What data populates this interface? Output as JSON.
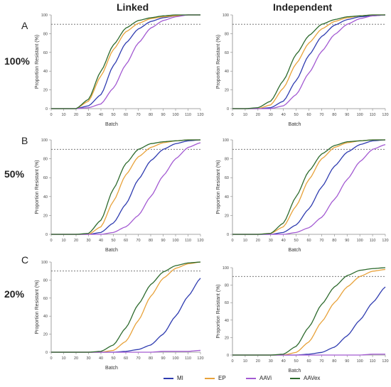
{
  "headers": {
    "linked": "Linked",
    "independent": "Independent"
  },
  "rows": [
    {
      "letter": "A",
      "percent": "100%"
    },
    {
      "letter": "B",
      "percent": "50%"
    },
    {
      "letter": "C",
      "percent": "20%"
    }
  ],
  "axes": {
    "ylabel": "Proportion Resistant (%)",
    "xlabel": "Batch",
    "xticks": [
      "0",
      "10",
      "20",
      "30",
      "40",
      "50",
      "60",
      "70",
      "80",
      "90",
      "100",
      "110",
      "120"
    ],
    "yticks": [
      "0",
      "20",
      "40",
      "60",
      "80",
      "100"
    ],
    "xlim": [
      0,
      120
    ],
    "ylim": [
      0,
      100
    ],
    "threshold": 90
  },
  "series_styles": [
    {
      "name": "MI",
      "color": "#2e3bb0"
    },
    {
      "name": "EP",
      "color": "#e8a23a"
    },
    {
      "name": "AAVi",
      "color": "#a35ad2"
    },
    {
      "name": "AAVex",
      "color": "#2d6a2d"
    }
  ],
  "legend": [
    {
      "label": "MI",
      "color": "#2e3bb0"
    },
    {
      "label": "EP",
      "color": "#e8a23a"
    },
    {
      "label": "AAVi",
      "color": "#a35ad2"
    },
    {
      "label": "AAVex",
      "color": "#2d6a2d"
    }
  ],
  "chart_data": [
    {
      "type": "line",
      "panel": "A-Linked",
      "xlim": [
        0,
        120
      ],
      "ylim": [
        0,
        100
      ],
      "xlabel": "Batch",
      "ylabel": "Proportion Resistant (%)",
      "reference_line_y": 90,
      "x": [
        0,
        10,
        20,
        30,
        40,
        50,
        60,
        70,
        80,
        90,
        100,
        110,
        120
      ],
      "series": [
        {
          "name": "MI",
          "values": [
            0,
            0,
            0,
            3,
            15,
            46,
            70,
            85,
            93,
            97,
            99,
            100,
            100
          ]
        },
        {
          "name": "EP",
          "values": [
            0,
            0,
            0,
            8,
            35,
            63,
            82,
            91,
            96,
            98,
            99,
            100,
            100
          ]
        },
        {
          "name": "AAVi",
          "values": [
            0,
            0,
            0,
            1,
            5,
            22,
            47,
            70,
            86,
            94,
            98,
            100,
            100
          ]
        },
        {
          "name": "AAVex",
          "values": [
            0,
            0,
            0,
            10,
            40,
            68,
            86,
            94,
            97,
            99,
            100,
            100,
            100
          ]
        }
      ]
    },
    {
      "type": "line",
      "panel": "A-Independent",
      "xlim": [
        0,
        120
      ],
      "ylim": [
        0,
        100
      ],
      "xlabel": "Batch",
      "ylabel": "Proportion Resistant (%)",
      "reference_line_y": 90,
      "x": [
        0,
        10,
        20,
        30,
        40,
        50,
        60,
        70,
        80,
        90,
        100,
        110,
        120
      ],
      "series": [
        {
          "name": "MI",
          "values": [
            0,
            0,
            0,
            1,
            8,
            30,
            57,
            77,
            89,
            95,
            98,
            99,
            100
          ]
        },
        {
          "name": "EP",
          "values": [
            0,
            0,
            0,
            4,
            22,
            48,
            70,
            85,
            93,
            97,
            99,
            100,
            100
          ]
        },
        {
          "name": "AAVi",
          "values": [
            0,
            0,
            0,
            0,
            3,
            15,
            38,
            61,
            79,
            90,
            96,
            99,
            100
          ]
        },
        {
          "name": "AAVex",
          "values": [
            0,
            0,
            1,
            8,
            30,
            58,
            78,
            90,
            95,
            98,
            99,
            100,
            100
          ]
        }
      ]
    },
    {
      "type": "line",
      "panel": "B-Linked",
      "xlim": [
        0,
        120
      ],
      "ylim": [
        0,
        100
      ],
      "xlabel": "Batch",
      "ylabel": "Proportion Resistant (%)",
      "reference_line_y": 90,
      "x": [
        0,
        10,
        20,
        30,
        40,
        50,
        60,
        70,
        80,
        90,
        100,
        110,
        120
      ],
      "series": [
        {
          "name": "MI",
          "values": [
            0,
            0,
            0,
            0,
            2,
            12,
            32,
            58,
            78,
            90,
            96,
            99,
            100
          ]
        },
        {
          "name": "EP",
          "values": [
            0,
            0,
            0,
            0,
            8,
            35,
            63,
            82,
            92,
            97,
            99,
            100,
            100
          ]
        },
        {
          "name": "AAVi",
          "values": [
            0,
            0,
            0,
            0,
            0,
            2,
            8,
            20,
            40,
            62,
            80,
            92,
            97
          ]
        },
        {
          "name": "AAVex",
          "values": [
            0,
            0,
            0,
            1,
            15,
            48,
            75,
            90,
            96,
            98,
            99,
            100,
            100
          ]
        }
      ]
    },
    {
      "type": "line",
      "panel": "B-Independent",
      "xlim": [
        0,
        120
      ],
      "ylim": [
        0,
        100
      ],
      "xlabel": "Batch",
      "ylabel": "Proportion Resistant (%)",
      "reference_line_y": 90,
      "x": [
        0,
        10,
        20,
        30,
        40,
        50,
        60,
        70,
        80,
        90,
        100,
        110,
        120
      ],
      "series": [
        {
          "name": "MI",
          "values": [
            0,
            0,
            0,
            0,
            2,
            10,
            27,
            50,
            72,
            87,
            95,
            99,
            100
          ]
        },
        {
          "name": "EP",
          "values": [
            0,
            0,
            0,
            1,
            8,
            30,
            58,
            80,
            92,
            97,
            99,
            100,
            100
          ]
        },
        {
          "name": "AAVi",
          "values": [
            0,
            0,
            0,
            0,
            0,
            2,
            7,
            18,
            37,
            58,
            77,
            90,
            95
          ]
        },
        {
          "name": "AAVex",
          "values": [
            0,
            0,
            0,
            1,
            12,
            40,
            67,
            85,
            94,
            98,
            99,
            100,
            100
          ]
        }
      ]
    },
    {
      "type": "line",
      "panel": "C-Linked",
      "xlim": [
        0,
        120
      ],
      "ylim": [
        0,
        100
      ],
      "xlabel": "Batch",
      "ylabel": "Proportion Resistant (%)",
      "reference_line_y": 90,
      "x": [
        0,
        10,
        20,
        30,
        40,
        50,
        60,
        70,
        80,
        90,
        100,
        110,
        120
      ],
      "series": [
        {
          "name": "MI",
          "values": [
            0,
            0,
            0,
            0,
            0,
            0,
            1,
            3,
            8,
            20,
            40,
            62,
            82
          ]
        },
        {
          "name": "EP",
          "values": [
            0,
            0,
            0,
            0,
            0,
            2,
            12,
            35,
            62,
            82,
            93,
            98,
            100
          ]
        },
        {
          "name": "AAVi",
          "values": [
            0,
            0,
            0,
            0,
            0,
            0,
            0,
            0,
            0,
            1,
            1,
            1,
            2
          ]
        },
        {
          "name": "AAVex",
          "values": [
            0,
            0,
            0,
            0,
            1,
            8,
            27,
            53,
            75,
            89,
            96,
            99,
            100
          ]
        }
      ]
    },
    {
      "type": "line",
      "panel": "C-Independent",
      "xlim": [
        0,
        120
      ],
      "ylim": [
        0,
        100
      ],
      "xlabel": "Batch",
      "ylabel": "Proportion Resistant (%)",
      "reference_line_y": 90,
      "x": [
        0,
        10,
        20,
        30,
        40,
        50,
        60,
        70,
        80,
        90,
        100,
        110,
        120
      ],
      "series": [
        {
          "name": "MI",
          "values": [
            0,
            0,
            0,
            0,
            0,
            0,
            1,
            3,
            9,
            22,
            40,
            60,
            78
          ]
        },
        {
          "name": "EP",
          "values": [
            0,
            0,
            0,
            0,
            0,
            3,
            15,
            38,
            60,
            78,
            90,
            96,
            98
          ]
        },
        {
          "name": "AAVi",
          "values": [
            0,
            0,
            0,
            0,
            0,
            0,
            0,
            0,
            0,
            0,
            0,
            1,
            1
          ]
        },
        {
          "name": "AAVex",
          "values": [
            0,
            0,
            0,
            0,
            1,
            10,
            32,
            58,
            78,
            91,
            97,
            99,
            100
          ]
        }
      ]
    }
  ]
}
